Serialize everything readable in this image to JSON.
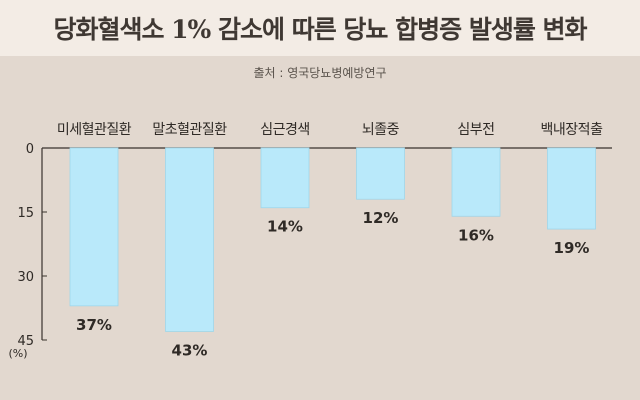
{
  "title": "당화혈색소 1% 감소에 따른 당뇨 합병증 발생률 변화",
  "source": "출처 : 영국당뇨병예방연구",
  "colors": {
    "bar": "#b9e9fa",
    "bar_edge": "#9fd6ea",
    "background": "#e2d8cf",
    "title_band": "#f3ece5",
    "axis": "#3a332e"
  },
  "chart_data": {
    "type": "bar",
    "categories": [
      "미세혈관질환",
      "말초혈관질환",
      "심근경색",
      "뇌졸중",
      "심부전",
      "백내장적출"
    ],
    "values": [
      37,
      43,
      14,
      12,
      16,
      19
    ],
    "value_labels": [
      "37%",
      "43%",
      "14%",
      "12%",
      "16%",
      "19%"
    ],
    "y_ticks": [
      "0",
      "15",
      "30",
      "45"
    ],
    "ylim": [
      0,
      45
    ],
    "y_unit": "(%)",
    "orientation": "downward",
    "grid": false
  }
}
